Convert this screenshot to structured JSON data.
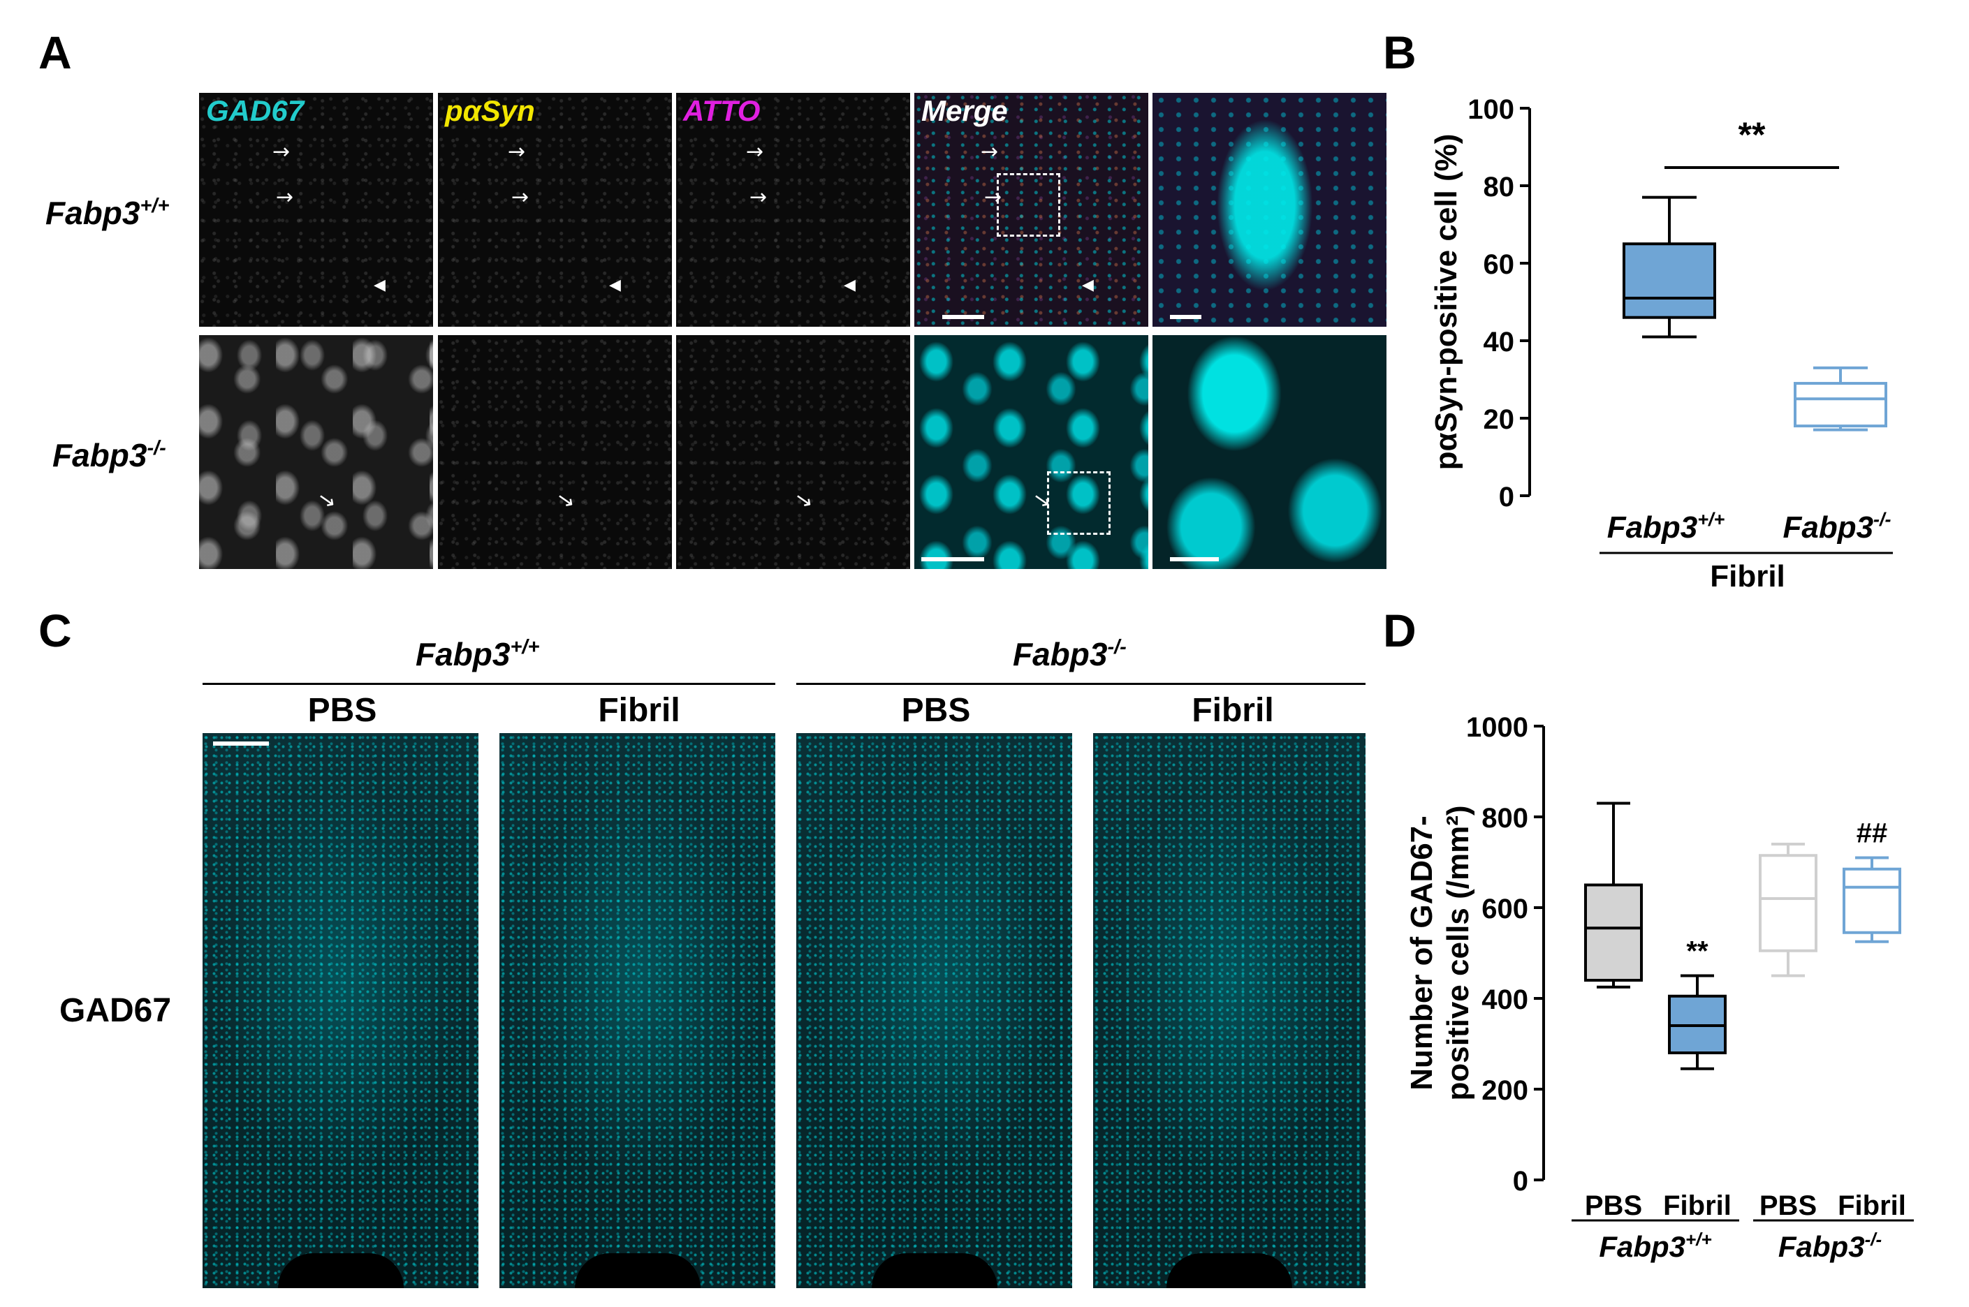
{
  "panels": {
    "A": "A",
    "B": "B",
    "C": "C",
    "D": "D"
  },
  "panelA": {
    "channels": [
      {
        "name": "GAD67",
        "color": "#22cccc"
      },
      {
        "name": "pαSyn",
        "color": "#f2e600"
      },
      {
        "name": "ATTO",
        "color": "#e020e0"
      },
      {
        "name": "Merge",
        "color": "#ffffff"
      }
    ],
    "rows": [
      {
        "gene": "Fabp3",
        "sup": "+/+"
      },
      {
        "gene": "Fabp3",
        "sup": "-/-"
      }
    ]
  },
  "panelC": {
    "groups": [
      {
        "gene": "Fabp3",
        "sup": "+/+"
      },
      {
        "gene": "Fabp3",
        "sup": "-/-"
      }
    ],
    "conditions": [
      "PBS",
      "Fibril",
      "PBS",
      "Fibril"
    ],
    "row_label": "GAD67"
  },
  "chart_data": [
    {
      "panel": "B",
      "type": "box",
      "ylabel": "pαSyn-positive cell (%)",
      "ylim": [
        0,
        100
      ],
      "yticks": [
        0,
        20,
        40,
        60,
        80,
        100
      ],
      "categories": [
        {
          "gene": "Fabp3",
          "sup": "+/+"
        },
        {
          "gene": "Fabp3",
          "sup": "-/-"
        }
      ],
      "group_label": "Fibril",
      "significance": "**",
      "boxes": [
        {
          "min": 41,
          "q1": 46,
          "median": 51,
          "q3": 65,
          "max": 77,
          "fill": "#6fa5d5",
          "stroke": "#000000"
        },
        {
          "min": 17,
          "q1": 18,
          "median": 25,
          "q3": 29,
          "max": 33,
          "fill": "#ffffff",
          "stroke": "#6fa5d5"
        }
      ]
    },
    {
      "panel": "D",
      "type": "box",
      "ylabel_lines": [
        "Number of GAD67-",
        "positive cells (/mm²)"
      ],
      "ylim": [
        0,
        1000
      ],
      "yticks": [
        0,
        200,
        400,
        600,
        800,
        1000
      ],
      "categories": [
        "PBS",
        "Fibril",
        "PBS",
        "Fibril"
      ],
      "groups": [
        {
          "gene": "Fabp3",
          "sup": "+/+"
        },
        {
          "gene": "Fabp3",
          "sup": "-/-"
        }
      ],
      "boxes": [
        {
          "min": 425,
          "q1": 440,
          "median": 555,
          "q3": 650,
          "max": 830,
          "fill": "#d3d3d3",
          "stroke": "#000000",
          "mark": ""
        },
        {
          "min": 245,
          "q1": 280,
          "median": 340,
          "q3": 405,
          "max": 450,
          "fill": "#6fa5d5",
          "stroke": "#000000",
          "mark": "**"
        },
        {
          "min": 450,
          "q1": 505,
          "median": 620,
          "q3": 715,
          "max": 740,
          "fill": "#ffffff",
          "stroke": "#cfcfcf",
          "mark": ""
        },
        {
          "min": 525,
          "q1": 545,
          "median": 645,
          "q3": 685,
          "max": 710,
          "fill": "#ffffff",
          "stroke": "#6fa5d5",
          "mark": "##"
        }
      ]
    }
  ]
}
